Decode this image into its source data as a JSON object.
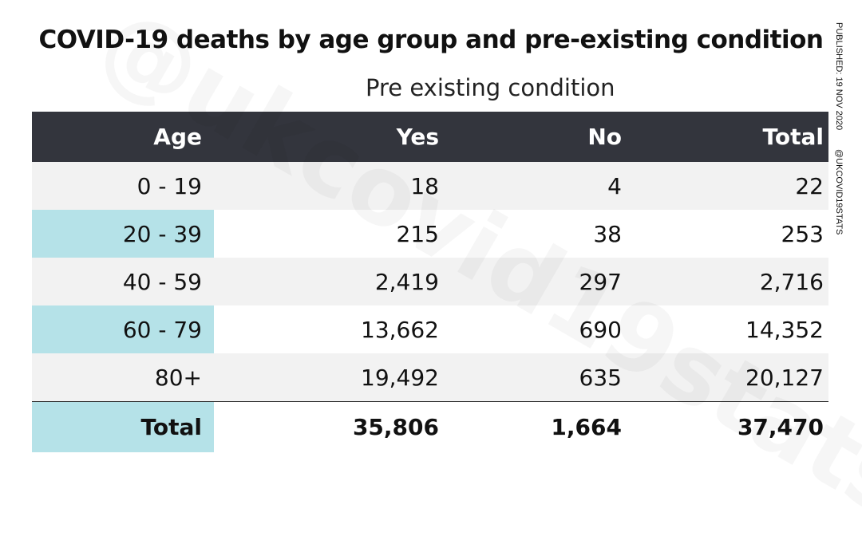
{
  "title": "COVID-19 deaths by age group and pre-existing condition",
  "subtitle": "Pre existing condition",
  "side": {
    "published": "PUBLISHED: 19 NOV 2020",
    "handle": "@UKCOVID19STATS"
  },
  "watermark": "@ukcovid19stats",
  "colors": {
    "header_bg": "#33353d",
    "age_column": "#b5e2e8",
    "alt_row": "#f2f2f2"
  },
  "chart_data": {
    "type": "table",
    "title": "COVID-19 deaths by age group and pre-existing condition",
    "columns": [
      "Age",
      "Yes",
      "No",
      "Total"
    ],
    "rows": [
      [
        "0 - 19",
        "18",
        "4",
        "22"
      ],
      [
        "20 - 39",
        "215",
        "38",
        "253"
      ],
      [
        "40 - 59",
        "2,419",
        "297",
        "2,716"
      ],
      [
        "60 - 79",
        "13,662",
        "690",
        "14,352"
      ],
      [
        "80+",
        "19,492",
        "635",
        "20,127"
      ]
    ],
    "total": [
      "Total",
      "35,806",
      "1,664",
      "37,470"
    ]
  }
}
